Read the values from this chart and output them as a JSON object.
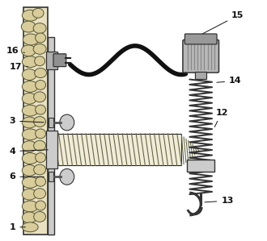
{
  "bg_color": "#ffffff",
  "wall_color": "#e8e0c0",
  "stone_color": "#d0c090",
  "stone_edge": "#444444",
  "frame_color": "#cccccc",
  "frame_edge": "#333333",
  "screw_fill": "#e8e4cc",
  "spring_color": "#333333",
  "cable_color": "#111111",
  "motor_color": "#aaaaaa",
  "label_color": "#111111",
  "labels": [
    "1",
    "3",
    "4",
    "6",
    "12",
    "13",
    "14",
    "15",
    "16",
    "17"
  ]
}
